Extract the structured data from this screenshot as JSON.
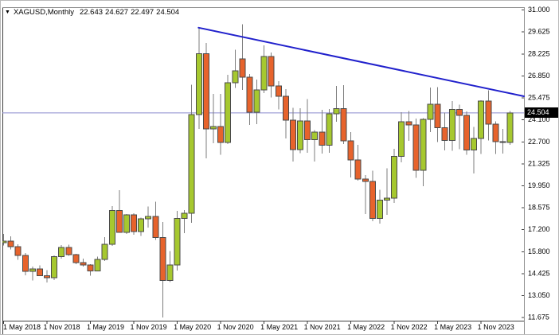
{
  "window": {
    "symbol_readout": {
      "dropdown_icon": "▼",
      "symbol": "XAGUSD,Monthly",
      "open": "22.643",
      "high": "24.627",
      "low": "22.497",
      "close": "24.504"
    }
  },
  "price_axis": {
    "price_tag": "24.504"
  },
  "colors": {
    "background": "#ffffff",
    "bull_body": "#a6c82f",
    "bear_body": "#e7632c",
    "candle_outline": "#4a4a4a",
    "wick": "#7d7d7d",
    "trendline": "#2121cc",
    "current_price_line": "#8a8ace",
    "frame_light": "#909090",
    "frame_dark": "#3f3f3f",
    "axis_text": "#000000",
    "price_tag_bg": "#000000",
    "price_tag_text": "#ffffff"
  },
  "chart_data": {
    "type": "candlestick",
    "symbol": "XAGUSD",
    "timeframe": "Monthly",
    "title": "XAGUSD,Monthly",
    "ylim": [
      11.675,
      31.0
    ],
    "grid": false,
    "y_tick_labels": [
      "31.000",
      "29.625",
      "28.225",
      "26.850",
      "25.475",
      "24.100",
      "22.700",
      "21.325",
      "19.950",
      "18.575",
      "17.200",
      "15.800",
      "14.425",
      "13.050",
      "11.675"
    ],
    "y_tick_values": [
      31.0,
      29.625,
      28.225,
      26.85,
      25.475,
      24.1,
      22.7,
      21.325,
      19.95,
      18.575,
      17.2,
      15.8,
      14.425,
      13.05,
      11.675
    ],
    "x_tick_labels": [
      "1 May 2018",
      "1 Nov 2018",
      "1 May 2019",
      "1 Nov 2019",
      "1 May 2020",
      "1 Nov 2020",
      "1 May 2021",
      "1 Nov 2021",
      "1 May 2022",
      "1 Nov 2022",
      "1 May 2023",
      "1 Nov 2023"
    ],
    "x_ticks_every_n_candles": 6,
    "candles": [
      {
        "t": "May 2018",
        "o": 16.35,
        "h": 16.91,
        "l": 16.17,
        "c": 16.44
      },
      {
        "t": "Jun 2018",
        "o": 16.44,
        "h": 16.75,
        "l": 15.93,
        "c": 16.1
      },
      {
        "t": "Jul 2018",
        "o": 16.1,
        "h": 16.24,
        "l": 15.27,
        "c": 15.55
      },
      {
        "t": "Aug 2018",
        "o": 15.55,
        "h": 15.7,
        "l": 14.31,
        "c": 14.55
      },
      {
        "t": "Sep 2018",
        "o": 14.55,
        "h": 14.85,
        "l": 13.97,
        "c": 14.7
      },
      {
        "t": "Oct 2018",
        "o": 14.7,
        "h": 14.92,
        "l": 14.24,
        "c": 14.27
      },
      {
        "t": "Nov 2018",
        "o": 14.27,
        "h": 14.63,
        "l": 13.86,
        "c": 14.14
      },
      {
        "t": "Dec 2018",
        "o": 14.14,
        "h": 15.55,
        "l": 13.99,
        "c": 15.47
      },
      {
        "t": "Jan 2019",
        "o": 15.47,
        "h": 16.2,
        "l": 15.36,
        "c": 16.06
      },
      {
        "t": "Feb 2019",
        "o": 16.06,
        "h": 16.22,
        "l": 15.52,
        "c": 15.6
      },
      {
        "t": "Mar 2019",
        "o": 15.6,
        "h": 15.64,
        "l": 14.99,
        "c": 15.11
      },
      {
        "t": "Apr 2019",
        "o": 15.11,
        "h": 15.35,
        "l": 14.86,
        "c": 14.94
      },
      {
        "t": "May 2019",
        "o": 14.94,
        "h": 14.99,
        "l": 14.27,
        "c": 14.57
      },
      {
        "t": "Jun 2019",
        "o": 14.57,
        "h": 15.48,
        "l": 14.55,
        "c": 15.29
      },
      {
        "t": "Jul 2019",
        "o": 15.29,
        "h": 16.69,
        "l": 15.2,
        "c": 16.26
      },
      {
        "t": "Aug 2019",
        "o": 16.26,
        "h": 18.65,
        "l": 16.15,
        "c": 18.38
      },
      {
        "t": "Sep 2019",
        "o": 18.38,
        "h": 19.65,
        "l": 17.46,
        "c": 17.0
      },
      {
        "t": "Oct 2019",
        "o": 17.0,
        "h": 18.14,
        "l": 16.9,
        "c": 18.11
      },
      {
        "t": "Nov 2019",
        "o": 18.11,
        "h": 18.19,
        "l": 16.85,
        "c": 17.04
      },
      {
        "t": "Dec 2019",
        "o": 17.04,
        "h": 17.92,
        "l": 16.77,
        "c": 17.85
      },
      {
        "t": "Jan 2020",
        "o": 17.85,
        "h": 18.62,
        "l": 17.3,
        "c": 18.01
      },
      {
        "t": "Feb 2020",
        "o": 18.01,
        "h": 18.92,
        "l": 16.53,
        "c": 16.67
      },
      {
        "t": "Mar 2020",
        "o": 16.67,
        "h": 17.64,
        "l": 11.64,
        "c": 13.97
      },
      {
        "t": "Apr 2020",
        "o": 13.97,
        "h": 15.83,
        "l": 13.87,
        "c": 14.96
      },
      {
        "t": "May 2020",
        "o": 14.96,
        "h": 18.36,
        "l": 14.6,
        "c": 17.87
      },
      {
        "t": "Jun 2020",
        "o": 17.87,
        "h": 18.4,
        "l": 16.96,
        "c": 18.21
      },
      {
        "t": "Jul 2020",
        "o": 18.21,
        "h": 26.28,
        "l": 17.6,
        "c": 24.4
      },
      {
        "t": "Aug 2020",
        "o": 24.4,
        "h": 29.86,
        "l": 23.5,
        "c": 28.23
      },
      {
        "t": "Sep 2020",
        "o": 28.23,
        "h": 28.9,
        "l": 21.66,
        "c": 23.49
      },
      {
        "t": "Oct 2020",
        "o": 23.49,
        "h": 25.71,
        "l": 22.6,
        "c": 23.66
      },
      {
        "t": "Nov 2020",
        "o": 23.66,
        "h": 25.69,
        "l": 21.88,
        "c": 22.64
      },
      {
        "t": "Dec 2020",
        "o": 22.64,
        "h": 26.9,
        "l": 22.55,
        "c": 26.4
      },
      {
        "t": "Jan 2021",
        "o": 26.4,
        "h": 28.47,
        "l": 26.07,
        "c": 27.15
      },
      {
        "t": "Feb 2021",
        "o": 27.9,
        "h": 30.07,
        "l": 25.95,
        "c": 26.75
      },
      {
        "t": "Mar 2021",
        "o": 26.75,
        "h": 26.94,
        "l": 23.74,
        "c": 24.55
      },
      {
        "t": "Apr 2021",
        "o": 24.55,
        "h": 26.6,
        "l": 23.8,
        "c": 25.95
      },
      {
        "t": "May 2021",
        "o": 25.95,
        "h": 28.75,
        "l": 25.75,
        "c": 28.05
      },
      {
        "t": "Jun 2021",
        "o": 28.05,
        "h": 28.3,
        "l": 25.47,
        "c": 26.2
      },
      {
        "t": "Jul 2021",
        "o": 26.2,
        "h": 26.5,
        "l": 24.72,
        "c": 25.55
      },
      {
        "t": "Aug 2021",
        "o": 25.55,
        "h": 25.99,
        "l": 22.9,
        "c": 24.05
      },
      {
        "t": "Sep 2021",
        "o": 24.05,
        "h": 24.82,
        "l": 21.45,
        "c": 22.2
      },
      {
        "t": "Oct 2021",
        "o": 22.2,
        "h": 24.8,
        "l": 21.98,
        "c": 24.0
      },
      {
        "t": "Nov 2021",
        "o": 24.0,
        "h": 25.37,
        "l": 22.0,
        "c": 22.83
      },
      {
        "t": "Dec 2021",
        "o": 22.83,
        "h": 23.43,
        "l": 21.45,
        "c": 23.29
      },
      {
        "t": "Jan 2022",
        "o": 23.29,
        "h": 24.71,
        "l": 21.94,
        "c": 22.48
      },
      {
        "t": "Feb 2022",
        "o": 22.48,
        "h": 24.75,
        "l": 22.0,
        "c": 24.44
      },
      {
        "t": "Mar 2022",
        "o": 24.44,
        "h": 26.21,
        "l": 23.95,
        "c": 24.78
      },
      {
        "t": "Apr 2022",
        "o": 24.78,
        "h": 26.25,
        "l": 22.55,
        "c": 22.76
      },
      {
        "t": "May 2022",
        "o": 22.76,
        "h": 23.3,
        "l": 20.46,
        "c": 21.56
      },
      {
        "t": "Jun 2022",
        "o": 21.56,
        "h": 22.51,
        "l": 20.26,
        "c": 20.35
      },
      {
        "t": "Jul 2022",
        "o": 20.35,
        "h": 20.6,
        "l": 18.15,
        "c": 20.2
      },
      {
        "t": "Aug 2022",
        "o": 20.2,
        "h": 20.87,
        "l": 17.7,
        "c": 17.88
      },
      {
        "t": "Sep 2022",
        "o": 17.88,
        "h": 19.68,
        "l": 17.56,
        "c": 19.03
      },
      {
        "t": "Oct 2022",
        "o": 19.03,
        "h": 21.02,
        "l": 18.09,
        "c": 19.15
      },
      {
        "t": "Nov 2022",
        "o": 19.15,
        "h": 22.26,
        "l": 18.84,
        "c": 21.78
      },
      {
        "t": "Dec 2022",
        "o": 21.78,
        "h": 24.54,
        "l": 21.4,
        "c": 23.95
      },
      {
        "t": "Jan 2023",
        "o": 23.95,
        "h": 24.63,
        "l": 22.76,
        "c": 23.74
      },
      {
        "t": "Feb 2023",
        "o": 23.74,
        "h": 24.15,
        "l": 20.42,
        "c": 20.91
      },
      {
        "t": "Mar 2023",
        "o": 20.91,
        "h": 24.18,
        "l": 19.9,
        "c": 24.1
      },
      {
        "t": "Apr 2023",
        "o": 24.1,
        "h": 26.09,
        "l": 23.29,
        "c": 25.05
      },
      {
        "t": "May 2023",
        "o": 25.05,
        "h": 26.13,
        "l": 22.68,
        "c": 23.57
      },
      {
        "t": "Jun 2023",
        "o": 23.57,
        "h": 24.53,
        "l": 22.14,
        "c": 22.77
      },
      {
        "t": "Jul 2023",
        "o": 22.77,
        "h": 25.26,
        "l": 22.12,
        "c": 24.72
      },
      {
        "t": "Aug 2023",
        "o": 24.72,
        "h": 25.02,
        "l": 22.23,
        "c": 24.36
      },
      {
        "t": "Sep 2023",
        "o": 24.36,
        "h": 24.6,
        "l": 21.88,
        "c": 22.18
      },
      {
        "t": "Oct 2023",
        "o": 22.18,
        "h": 23.63,
        "l": 20.69,
        "c": 22.9
      },
      {
        "t": "Nov 2023",
        "o": 22.9,
        "h": 25.29,
        "l": 21.93,
        "c": 25.26
      },
      {
        "t": "Dec 2023",
        "o": 25.26,
        "h": 25.92,
        "l": 22.78,
        "c": 23.8
      },
      {
        "t": "Jan 2024",
        "o": 23.8,
        "h": 23.97,
        "l": 21.93,
        "c": 22.71
      },
      {
        "t": "Feb 2024",
        "o": 22.71,
        "h": 23.5,
        "l": 21.94,
        "c": 22.64
      },
      {
        "t": "Mar 2024",
        "o": 22.643,
        "h": 24.627,
        "l": 22.497,
        "c": 24.504
      }
    ],
    "overlays": {
      "current_price_line": {
        "price": 24.504,
        "label": "24.504"
      },
      "descending_trendline": {
        "from_t": "Aug 2020",
        "from_price": 29.86,
        "to_price_at_right_edge": 25.55
      }
    }
  }
}
